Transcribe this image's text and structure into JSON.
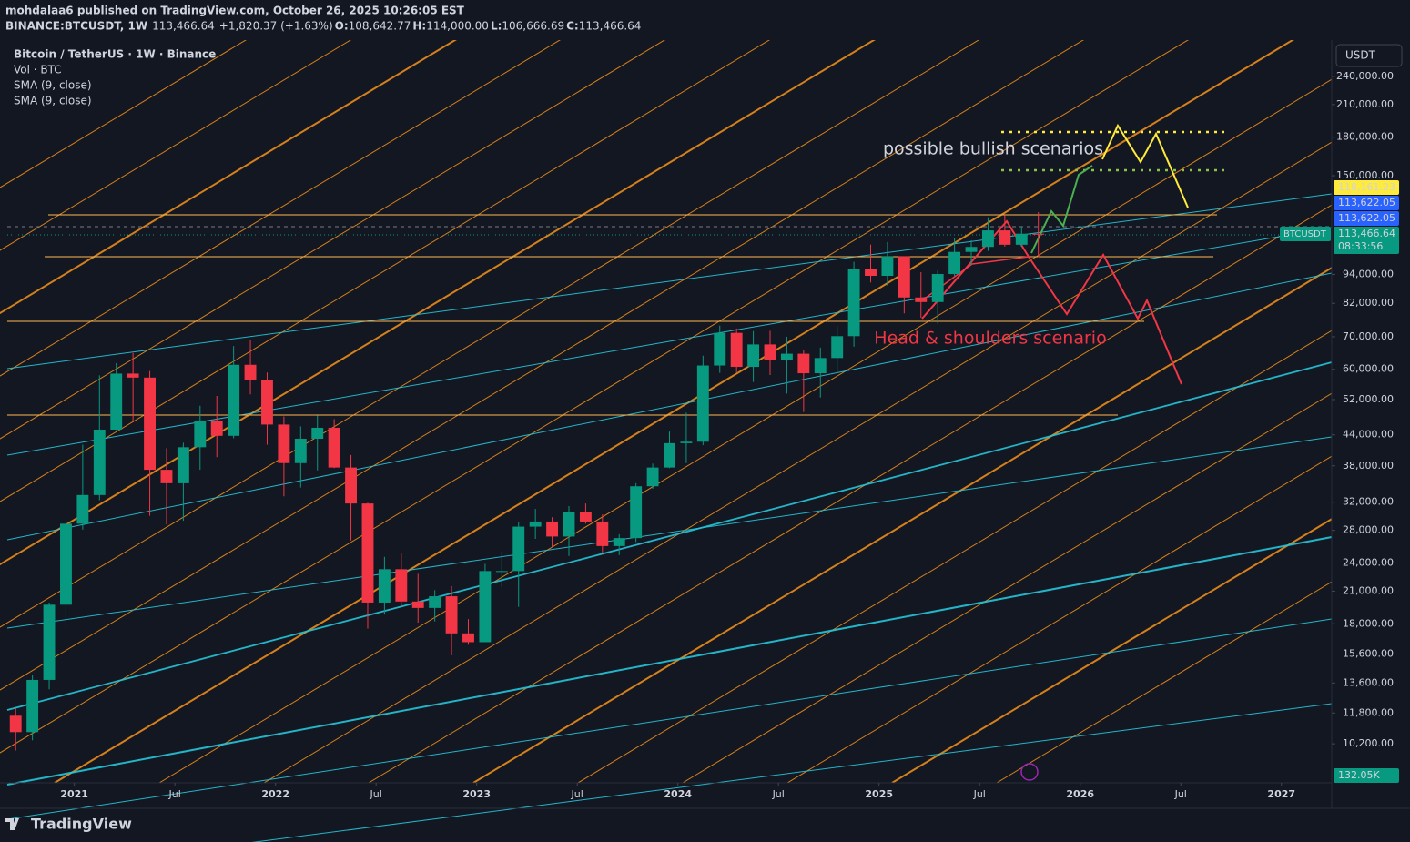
{
  "header": {
    "publisher": "mohdalaa6 published on TradingView.com, October 26, 2025 10:26:05 EST",
    "symbol": "BINANCE:BTCUSDT, 1W",
    "last": "113,466.64",
    "change": "+1,820.37 (+1.63%)",
    "ohlc": [
      {
        "label": "O:",
        "value": "108,642.77"
      },
      {
        "label": "H:",
        "value": "114,000.00"
      },
      {
        "label": "L:",
        "value": "106,666.69"
      },
      {
        "label": "C:",
        "value": "113,466.64"
      }
    ]
  },
  "legend": [
    "Bitcoin / TetherUS · 1W · Binance",
    "Vol · BTC",
    "SMA (9, close)",
    "SMA (9, close)"
  ],
  "currency": "USDT",
  "annotations": {
    "bullish": "possible bullish scenarios",
    "bearish": "Head & shoulders scenario"
  },
  "price_labels": [
    {
      "label": "118,161.23",
      "color": "#ffeb3b"
    },
    {
      "label": "113,622.05",
      "color": "#2962ff"
    },
    {
      "label": "113,622.05",
      "color": "#2962ff"
    },
    {
      "label": "113,466.64",
      "sub": "08:33:56",
      "symbol": "BTCUSDT",
      "color": "#089981"
    },
    {
      "label": "132.05K",
      "color": "#089981"
    }
  ],
  "footer": "TradingView",
  "chart_data": {
    "type": "candlestick",
    "log_scale": true,
    "up_color": "#089981",
    "down_color": "#f23645",
    "x": [
      "2020-09",
      "2020-10",
      "2020-11",
      "2020-12",
      "2021-01",
      "2021-02",
      "2021-03",
      "2021-04",
      "2021-05",
      "2021-06",
      "2021-07",
      "2021-08",
      "2021-09",
      "2021-10",
      "2021-11",
      "2021-12",
      "2022-01",
      "2022-02",
      "2022-03",
      "2022-04",
      "2022-05",
      "2022-06",
      "2022-07",
      "2022-08",
      "2022-09",
      "2022-10",
      "2022-11",
      "2022-12",
      "2023-01",
      "2023-02",
      "2023-03",
      "2023-04",
      "2023-05",
      "2023-06",
      "2023-07",
      "2023-08",
      "2023-09",
      "2023-10",
      "2023-11",
      "2023-12",
      "2024-01",
      "2024-02",
      "2024-03",
      "2024-04",
      "2024-05",
      "2024-06",
      "2024-07",
      "2024-08",
      "2024-09",
      "2024-10",
      "2024-11",
      "2024-12",
      "2025-01",
      "2025-02",
      "2025-03",
      "2025-04",
      "2025-05",
      "2025-06",
      "2025-07",
      "2025-08",
      "2025-09",
      "2025-10"
    ],
    "open": [
      11650,
      10780,
      13800,
      19700,
      28900,
      33100,
      45100,
      58800,
      57700,
      37300,
      35000,
      41500,
      47100,
      43800,
      61300,
      57000,
      46200,
      38500,
      43200,
      45500,
      37700,
      31800,
      19900,
      23300,
      20000,
      19400,
      20500,
      17200,
      16500,
      23100,
      23100,
      28500,
      29200,
      27200,
      30500,
      29200,
      26000,
      27000,
      34500,
      37700,
      42300,
      42600,
      61100,
      71300,
      60700,
      67500,
      62700,
      64600,
      58900,
      63300,
      70200,
      96400,
      93400,
      102400,
      84300,
      82500,
      94200,
      104600,
      107100,
      115800,
      108200,
      114000
    ],
    "high": [
      12050,
      14100,
      19900,
      29300,
      42000,
      58300,
      61800,
      64800,
      59500,
      41300,
      42400,
      50500,
      52900,
      67000,
      69000,
      59100,
      48000,
      45800,
      48200,
      47400,
      40000,
      31900,
      24700,
      25200,
      22800,
      21100,
      21500,
      18400,
      23900,
      25300,
      29200,
      31000,
      29800,
      31400,
      31800,
      30200,
      27500,
      35000,
      38400,
      44700,
      48900,
      64000,
      73800,
      72800,
      71900,
      72000,
      70000,
      65600,
      66500,
      73600,
      99800,
      108300,
      109600,
      102500,
      95000,
      95800,
      111900,
      110500,
      123200,
      124500,
      117900,
      126200
    ],
    "low": [
      9880,
      10370,
      13200,
      17600,
      28100,
      32300,
      45000,
      47000,
      30000,
      28800,
      29300,
      37300,
      39600,
      43300,
      53300,
      42000,
      32900,
      34300,
      37200,
      37600,
      26700,
      17600,
      18800,
      19600,
      18100,
      18200,
      15500,
      16300,
      16500,
      21400,
      19500,
      26900,
      25800,
      24800,
      28900,
      25200,
      24900,
      26500,
      34100,
      37600,
      38500,
      41900,
      59000,
      59200,
      56500,
      58400,
      53500,
      49000,
      52500,
      58900,
      66800,
      90500,
      89200,
      78200,
      76600,
      74500,
      93300,
      98200,
      105100,
      107300,
      107200,
      102000
    ],
    "close": [
      10780,
      13800,
      19700,
      28900,
      33100,
      45100,
      58800,
      57700,
      37300,
      35000,
      41500,
      47100,
      43800,
      61300,
      57000,
      46200,
      38500,
      43200,
      45500,
      37700,
      31800,
      19900,
      23300,
      20000,
      19400,
      20500,
      17200,
      16500,
      23100,
      23100,
      28500,
      29200,
      27200,
      30500,
      29200,
      26000,
      27000,
      34500,
      37700,
      42300,
      42600,
      61100,
      71300,
      60700,
      67500,
      62700,
      64600,
      58900,
      63300,
      70200,
      96400,
      93400,
      102400,
      84300,
      82500,
      94200,
      104600,
      107100,
      115800,
      108200,
      114000,
      113466.64
    ],
    "xlim": [
      "2020-09",
      "2027-04"
    ],
    "xticks": [
      {
        "value": "2021-01",
        "label": "2021"
      },
      {
        "value": "2021-07",
        "label": "Jul"
      },
      {
        "value": "2022-01",
        "label": "2022"
      },
      {
        "value": "2022-07",
        "label": "Jul"
      },
      {
        "value": "2023-01",
        "label": "2023"
      },
      {
        "value": "2023-07",
        "label": "Jul"
      },
      {
        "value": "2024-01",
        "label": "2024"
      },
      {
        "value": "2024-07",
        "label": "Jul"
      },
      {
        "value": "2025-01",
        "label": "2025"
      },
      {
        "value": "2025-07",
        "label": "Jul"
      },
      {
        "value": "2026-01",
        "label": "2026"
      },
      {
        "value": "2026-07",
        "label": "Jul"
      },
      {
        "value": "2027-01",
        "label": "2027"
      }
    ],
    "ylim": [
      8480,
      285000
    ],
    "yticks": [
      {
        "value": 10200,
        "label": "10,200.00"
      },
      {
        "value": 11800,
        "label": "11,800.00"
      },
      {
        "value": 13600,
        "label": "13,600.00"
      },
      {
        "value": 15600,
        "label": "15,600.00"
      },
      {
        "value": 18000,
        "label": "18,000.00"
      },
      {
        "value": 21000,
        "label": "21,000.00"
      },
      {
        "value": 24000,
        "label": "24,000.00"
      },
      {
        "value": 28000,
        "label": "28,000.00"
      },
      {
        "value": 32000,
        "label": "32,000.00"
      },
      {
        "value": 38000,
        "label": "38,000.00"
      },
      {
        "value": 44000,
        "label": "44,000.00"
      },
      {
        "value": 52000,
        "label": "52,000.00"
      },
      {
        "value": 60000,
        "label": "60,000.00"
      },
      {
        "value": 70000,
        "label": "70,000.00"
      },
      {
        "value": 82000,
        "label": "82,000.00"
      },
      {
        "value": 94000,
        "label": "94,000.00"
      },
      {
        "value": 150000,
        "label": "150,000.00"
      },
      {
        "value": 180000,
        "label": "180,000.00"
      },
      {
        "value": 210000,
        "label": "210,000.00"
      },
      {
        "value": 240000,
        "label": "240,000.00"
      }
    ]
  }
}
